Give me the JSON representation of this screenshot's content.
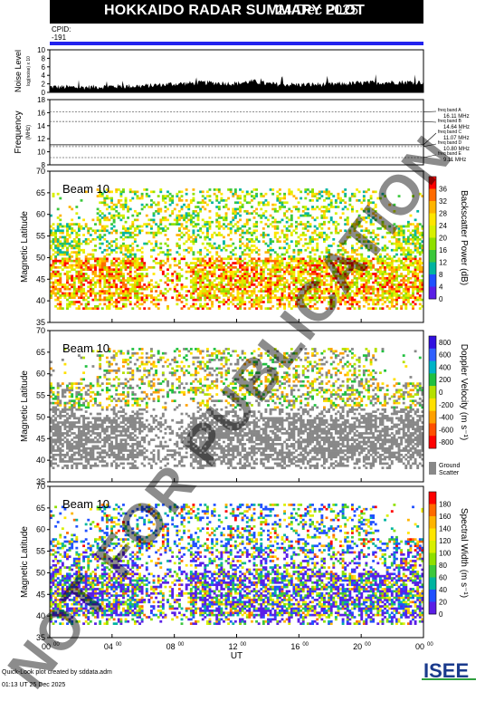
{
  "header": {
    "title": "HOKKAIDO RADAR SUMMARY PLOT",
    "date": "24 Dec 2025"
  },
  "watermark": "NOT FOR PUBLICATION",
  "footer": {
    "line1": "Quick-Look plot created by sddata.adm",
    "line2": "01:13 UT 25 Dec 2025"
  },
  "logo": {
    "text": "ISEE",
    "colors": [
      "#1a3a8c",
      "#2e9e3e"
    ]
  },
  "chart_data": [
    {
      "type": "line",
      "title": "CPID:",
      "series": [
        {
          "name": "",
          "values": [
            "-191"
          ]
        }
      ],
      "note_color": "#2222ee"
    },
    {
      "type": "area",
      "ylabel": "Noise Level",
      "ylabel_sub": "log(noise) x 10",
      "yticks": [
        "0",
        "2",
        "4",
        "6",
        "8",
        "10"
      ],
      "ylim": [
        0,
        10
      ],
      "x": [
        0,
        2,
        4,
        6,
        8,
        10,
        12,
        13,
        14,
        16,
        18,
        20,
        22,
        24
      ],
      "values": [
        1.3,
        1.2,
        1.4,
        1.5,
        2.0,
        2.3,
        2.1,
        2.6,
        2.0,
        1.8,
        1.9,
        2.2,
        2.4,
        2.4
      ]
    },
    {
      "type": "line",
      "ylabel": "Frequency",
      "ylabel_sub": "(MHz)",
      "yticks": [
        "8",
        "10",
        "12",
        "14",
        "16",
        "18"
      ],
      "ylim": [
        8,
        18
      ],
      "bands": [
        {
          "label": "freq band A",
          "value": "16.11 MHz",
          "mhz": 16.11
        },
        {
          "label": "freq band B",
          "value": "14.64 MHz",
          "mhz": 14.64
        },
        {
          "label": "freq band C",
          "value": "11.07 MHz",
          "mhz": 11.07
        },
        {
          "label": "freq band D",
          "value": "10.80 MHz",
          "mhz": 10.8
        },
        {
          "label": "freq band E",
          "value": "9.11 MHz",
          "mhz": 9.11
        }
      ]
    },
    {
      "type": "heatmap",
      "name": "power",
      "beam": "Beam 10",
      "ylabel": "Magnetic Latitude",
      "yticks": [
        "35",
        "40",
        "45",
        "50",
        "55",
        "60",
        "65",
        "70"
      ],
      "ylim": [
        35,
        70
      ],
      "colorbar_label": "Backscatter Power (dB)",
      "colorbar_ticks": [
        "0",
        "4",
        "8",
        "12",
        "16",
        "20",
        "24",
        "28",
        "32",
        "36"
      ],
      "colorbar_range": [
        0,
        36
      ]
    },
    {
      "type": "heatmap",
      "name": "velocity",
      "beam": "Beam 10",
      "ylabel": "Magnetic Latitude",
      "yticks": [
        "35",
        "40",
        "45",
        "50",
        "55",
        "60",
        "65",
        "70"
      ],
      "ylim": [
        35,
        70
      ],
      "colorbar_label": "Doppler Velocity (m s⁻¹)",
      "colorbar_ticks": [
        "800",
        "600",
        "400",
        "200",
        "0",
        "-200",
        "-400",
        "-600",
        "-800"
      ],
      "colorbar_range": [
        -800,
        800
      ],
      "ground_scatter_label": "Ground Scatter",
      "ground_scatter_color": "#888888"
    },
    {
      "type": "heatmap",
      "name": "width",
      "beam": "Beam 10",
      "ylabel": "Magnetic Latitude",
      "yticks": [
        "35",
        "40",
        "45",
        "50",
        "55",
        "60",
        "65",
        "70"
      ],
      "ylim": [
        35,
        70
      ],
      "colorbar_label": "Spectral Width (m s⁻¹)",
      "colorbar_ticks": [
        "0",
        "20",
        "40",
        "60",
        "80",
        "100",
        "120",
        "140",
        "160",
        "180"
      ],
      "colorbar_range": [
        0,
        180
      ],
      "xlabel": "UT",
      "xticks": [
        "00",
        "04",
        "08",
        "12",
        "16",
        "20",
        "00"
      ],
      "xtick_sup": "00",
      "xlim": [
        0,
        24
      ]
    }
  ]
}
